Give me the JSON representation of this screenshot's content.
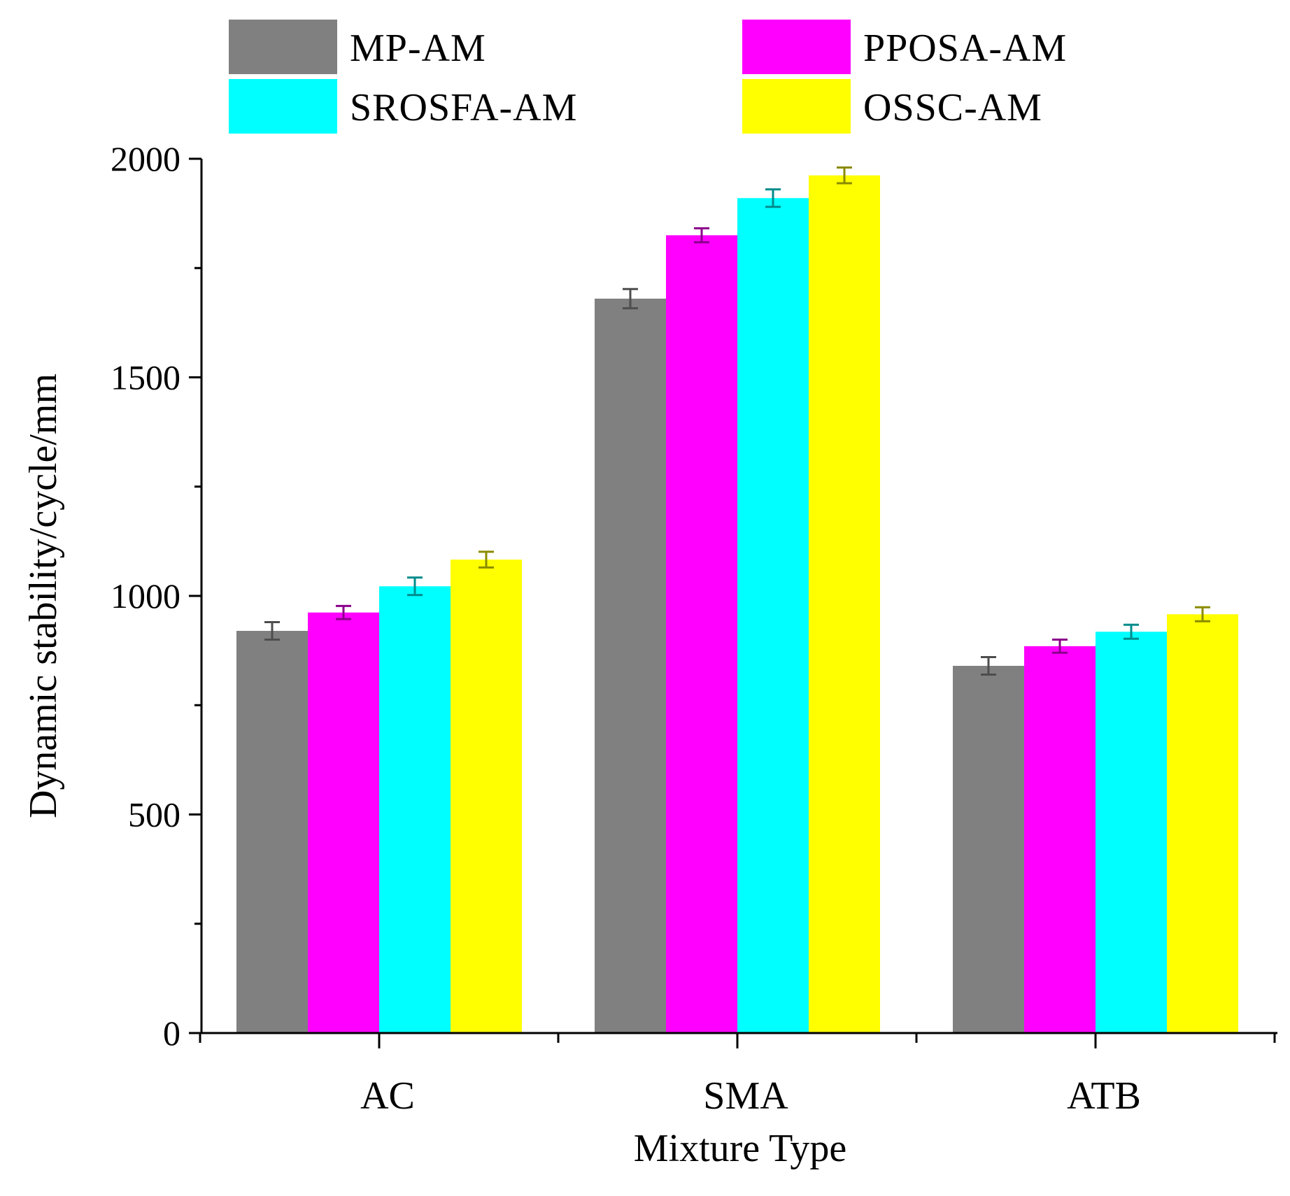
{
  "chart_data": {
    "type": "bar",
    "title": "",
    "xlabel": "Mixture Type",
    "ylabel": "Dynamic stability/cycle/mm",
    "ylim": [
      0,
      2000
    ],
    "yticks": [
      0,
      500,
      1000,
      1500,
      2000
    ],
    "categories": [
      "AC",
      "SMA",
      "ATB"
    ],
    "series": [
      {
        "name": "MP-AM",
        "color": "#808080",
        "errorColor": "#4d4d4d",
        "values": [
          920,
          1680,
          840
        ],
        "errors": [
          20,
          22,
          20
        ]
      },
      {
        "name": "PPOSA-AM",
        "color": "#ff00ff",
        "errorColor": "#8b008b",
        "values": [
          962,
          1825,
          885
        ],
        "errors": [
          15,
          16,
          15
        ]
      },
      {
        "name": "SROSFA-AM",
        "color": "#00ffff",
        "errorColor": "#008b8b",
        "values": [
          1022,
          1910,
          918
        ],
        "errors": [
          20,
          20,
          16
        ]
      },
      {
        "name": "OSSC-AM",
        "color": "#ffff00",
        "errorColor": "#8b8b00",
        "values": [
          1083,
          1962,
          958
        ],
        "errors": [
          18,
          18,
          16
        ]
      }
    ],
    "legend": "top",
    "grid": false
  }
}
